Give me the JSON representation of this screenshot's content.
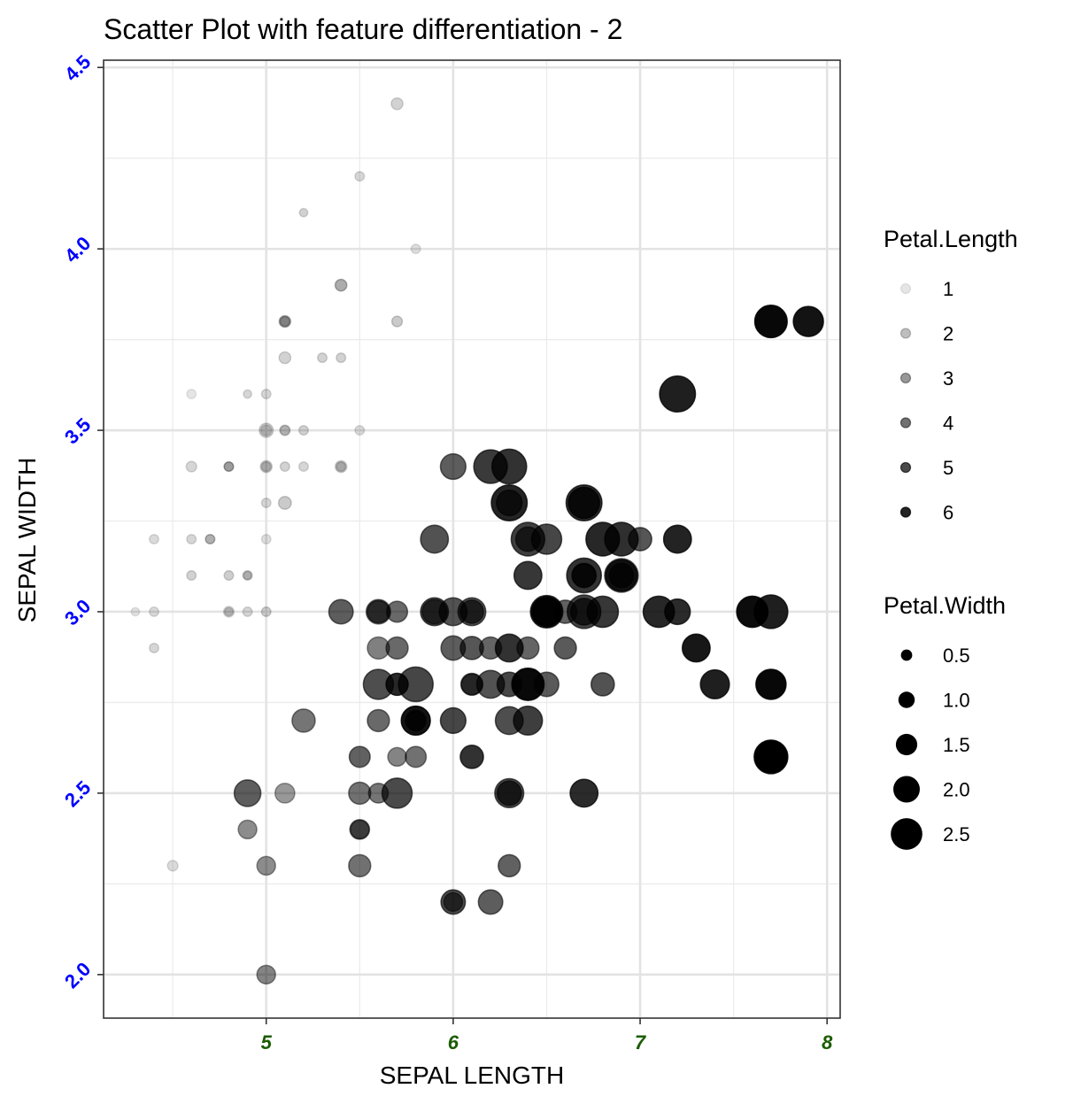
{
  "chart_data": {
    "type": "scatter",
    "title": "Scatter Plot with feature differentiation - 2",
    "xlabel": "SEPAL LENGTH",
    "ylabel": "SEPAL WIDTH",
    "xlim": [
      4.13,
      8.07
    ],
    "ylim": [
      1.88,
      4.52
    ],
    "xticks": [
      5,
      6,
      7,
      8
    ],
    "yticks": [
      2.0,
      2.5,
      3.0,
      3.5,
      4.0,
      4.5
    ],
    "xtick_labels": [
      "5",
      "6",
      "7",
      "8"
    ],
    "ytick_labels": [
      "2.0",
      "2.5",
      "3.0",
      "3.5",
      "4.0",
      "4.5"
    ],
    "xtick_color": "#1a5c00",
    "ytick_color": "#0000ff",
    "grid": true,
    "point_color": "#000000",
    "alpha_encodes": "Petal.Length",
    "size_encodes": "Petal.Width",
    "legend_position": "right",
    "legend_alpha": {
      "title": "Petal.Length",
      "labels": [
        "1",
        "2",
        "3",
        "4",
        "5",
        "6"
      ],
      "values": [
        1,
        2,
        3,
        4,
        5,
        6
      ]
    },
    "legend_size": {
      "title": "Petal.Width",
      "labels": [
        "0.5",
        "1.0",
        "1.5",
        "2.0",
        "2.5"
      ],
      "values": [
        0.5,
        1.0,
        1.5,
        2.0,
        2.5
      ]
    },
    "points": [
      [
        5.1,
        3.5,
        1.4,
        0.2
      ],
      [
        4.9,
        3.0,
        1.4,
        0.2
      ],
      [
        4.7,
        3.2,
        1.3,
        0.2
      ],
      [
        4.6,
        3.1,
        1.5,
        0.2
      ],
      [
        5.0,
        3.6,
        1.4,
        0.2
      ],
      [
        5.4,
        3.9,
        1.7,
        0.4
      ],
      [
        4.6,
        3.4,
        1.4,
        0.3
      ],
      [
        5.0,
        3.4,
        1.5,
        0.2
      ],
      [
        4.4,
        2.9,
        1.4,
        0.2
      ],
      [
        4.9,
        3.1,
        1.5,
        0.1
      ],
      [
        5.4,
        3.7,
        1.5,
        0.2
      ],
      [
        4.8,
        3.4,
        1.6,
        0.2
      ],
      [
        4.8,
        3.0,
        1.4,
        0.1
      ],
      [
        4.3,
        3.0,
        1.1,
        0.1
      ],
      [
        5.8,
        4.0,
        1.2,
        0.2
      ],
      [
        5.7,
        4.4,
        1.5,
        0.4
      ],
      [
        5.4,
        3.9,
        1.3,
        0.4
      ],
      [
        5.1,
        3.5,
        1.4,
        0.3
      ],
      [
        5.7,
        3.8,
        1.7,
        0.3
      ],
      [
        5.1,
        3.8,
        1.5,
        0.3
      ],
      [
        5.4,
        3.4,
        1.7,
        0.2
      ],
      [
        5.1,
        3.7,
        1.5,
        0.4
      ],
      [
        4.6,
        3.6,
        1.0,
        0.2
      ],
      [
        5.1,
        3.3,
        1.7,
        0.5
      ],
      [
        4.8,
        3.4,
        1.9,
        0.2
      ],
      [
        5.0,
        3.0,
        1.6,
        0.2
      ],
      [
        5.0,
        3.4,
        1.6,
        0.4
      ],
      [
        5.2,
        3.5,
        1.5,
        0.2
      ],
      [
        5.2,
        3.4,
        1.4,
        0.2
      ],
      [
        4.7,
        3.2,
        1.6,
        0.2
      ],
      [
        4.8,
        3.1,
        1.6,
        0.2
      ],
      [
        5.4,
        3.4,
        1.5,
        0.4
      ],
      [
        5.2,
        4.1,
        1.5,
        0.1
      ],
      [
        5.5,
        4.2,
        1.4,
        0.2
      ],
      [
        4.9,
        3.1,
        1.5,
        0.2
      ],
      [
        5.0,
        3.2,
        1.2,
        0.2
      ],
      [
        5.5,
        3.5,
        1.3,
        0.2
      ],
      [
        4.9,
        3.6,
        1.4,
        0.1
      ],
      [
        4.4,
        3.0,
        1.3,
        0.2
      ],
      [
        5.1,
        3.4,
        1.5,
        0.2
      ],
      [
        5.0,
        3.5,
        1.3,
        0.3
      ],
      [
        4.5,
        2.3,
        1.3,
        0.3
      ],
      [
        4.4,
        3.2,
        1.3,
        0.2
      ],
      [
        5.0,
        3.5,
        1.6,
        0.6
      ],
      [
        5.1,
        3.8,
        1.9,
        0.4
      ],
      [
        4.8,
        3.0,
        1.4,
        0.3
      ],
      [
        5.1,
        3.8,
        1.6,
        0.2
      ],
      [
        4.6,
        3.2,
        1.4,
        0.2
      ],
      [
        5.3,
        3.7,
        1.5,
        0.2
      ],
      [
        5.0,
        3.3,
        1.4,
        0.2
      ],
      [
        7.0,
        3.2,
        4.7,
        1.4
      ],
      [
        6.4,
        3.2,
        4.5,
        1.5
      ],
      [
        6.9,
        3.1,
        4.9,
        1.5
      ],
      [
        5.5,
        2.3,
        4.0,
        1.3
      ],
      [
        6.5,
        2.8,
        4.6,
        1.5
      ],
      [
        5.7,
        2.8,
        4.5,
        1.3
      ],
      [
        6.3,
        3.3,
        4.7,
        1.6
      ],
      [
        4.9,
        2.4,
        3.3,
        1.0
      ],
      [
        6.6,
        2.9,
        4.6,
        1.3
      ],
      [
        5.2,
        2.7,
        3.9,
        1.4
      ],
      [
        5.0,
        2.0,
        3.5,
        1.0
      ],
      [
        5.9,
        3.0,
        4.2,
        1.5
      ],
      [
        6.0,
        2.2,
        4.0,
        1.0
      ],
      [
        6.1,
        2.9,
        4.7,
        1.4
      ],
      [
        5.6,
        2.9,
        3.6,
        1.3
      ],
      [
        6.7,
        3.1,
        4.4,
        1.4
      ],
      [
        5.6,
        3.0,
        4.5,
        1.5
      ],
      [
        5.8,
        2.7,
        4.1,
        1.0
      ],
      [
        6.2,
        2.2,
        4.5,
        1.5
      ],
      [
        5.6,
        2.5,
        3.9,
        1.1
      ],
      [
        5.9,
        3.2,
        4.8,
        1.8
      ],
      [
        6.1,
        2.8,
        4.0,
        1.3
      ],
      [
        6.3,
        2.5,
        4.9,
        1.5
      ],
      [
        6.1,
        2.8,
        4.7,
        1.2
      ],
      [
        6.4,
        2.9,
        4.3,
        1.3
      ],
      [
        6.6,
        3.0,
        4.4,
        1.4
      ],
      [
        6.8,
        2.8,
        4.8,
        1.4
      ],
      [
        6.7,
        3.0,
        5.0,
        1.7
      ],
      [
        6.0,
        2.9,
        4.5,
        1.5
      ],
      [
        5.7,
        2.6,
        3.5,
        1.0
      ],
      [
        5.5,
        2.4,
        3.8,
        1.1
      ],
      [
        5.5,
        2.4,
        3.7,
        1.0
      ],
      [
        5.8,
        2.7,
        3.9,
        1.2
      ],
      [
        6.0,
        2.7,
        5.1,
        1.6
      ],
      [
        5.4,
        3.0,
        4.5,
        1.5
      ],
      [
        6.0,
        3.4,
        4.5,
        1.6
      ],
      [
        6.7,
        3.1,
        4.7,
        1.5
      ],
      [
        6.3,
        2.3,
        4.4,
        1.3
      ],
      [
        5.6,
        3.0,
        4.1,
        1.3
      ],
      [
        5.5,
        2.5,
        4.0,
        1.3
      ],
      [
        5.5,
        2.6,
        4.4,
        1.2
      ],
      [
        6.1,
        3.0,
        4.6,
        1.4
      ],
      [
        5.8,
        2.6,
        4.0,
        1.2
      ],
      [
        5.0,
        2.3,
        3.3,
        1.0
      ],
      [
        5.6,
        2.7,
        4.2,
        1.3
      ],
      [
        5.7,
        3.0,
        4.2,
        1.2
      ],
      [
        5.7,
        2.9,
        4.2,
        1.3
      ],
      [
        6.2,
        2.9,
        4.3,
        1.3
      ],
      [
        5.1,
        2.5,
        3.0,
        1.1
      ],
      [
        5.7,
        2.8,
        4.1,
        1.3
      ],
      [
        6.3,
        3.3,
        6.0,
        2.5
      ],
      [
        5.8,
        2.7,
        5.1,
        1.9
      ],
      [
        7.1,
        3.0,
        5.9,
        2.1
      ],
      [
        6.3,
        2.9,
        5.6,
        1.8
      ],
      [
        6.5,
        3.0,
        5.8,
        2.2
      ],
      [
        7.6,
        3.0,
        6.6,
        2.1
      ],
      [
        4.9,
        2.5,
        4.5,
        1.7
      ],
      [
        7.3,
        2.9,
        6.3,
        1.8
      ],
      [
        6.7,
        2.5,
        5.8,
        1.8
      ],
      [
        7.2,
        3.6,
        6.1,
        2.5
      ],
      [
        6.5,
        3.2,
        5.1,
        2.0
      ],
      [
        6.4,
        2.7,
        5.3,
        1.9
      ],
      [
        6.8,
        3.0,
        5.5,
        2.1
      ],
      [
        5.7,
        2.5,
        5.0,
        2.0
      ],
      [
        5.8,
        2.8,
        5.1,
        2.4
      ],
      [
        6.4,
        3.2,
        5.3,
        2.3
      ],
      [
        6.5,
        3.0,
        5.5,
        1.8
      ],
      [
        7.7,
        3.8,
        6.7,
        2.2
      ],
      [
        7.7,
        2.6,
        6.9,
        2.3
      ],
      [
        6.0,
        2.2,
        5.0,
        1.5
      ],
      [
        6.9,
        3.2,
        5.7,
        2.3
      ],
      [
        5.6,
        2.8,
        4.9,
        2.0
      ],
      [
        7.7,
        2.8,
        6.7,
        2.0
      ],
      [
        6.3,
        2.7,
        4.9,
        1.8
      ],
      [
        6.7,
        3.3,
        5.7,
        2.1
      ],
      [
        7.2,
        3.2,
        6.0,
        1.8
      ],
      [
        6.2,
        2.8,
        4.8,
        1.8
      ],
      [
        6.1,
        3.0,
        4.9,
        1.8
      ],
      [
        6.4,
        2.8,
        5.6,
        2.1
      ],
      [
        7.2,
        3.0,
        5.8,
        1.6
      ],
      [
        7.4,
        2.8,
        6.1,
        1.9
      ],
      [
        7.9,
        3.8,
        6.4,
        2.0
      ],
      [
        6.4,
        2.8,
        5.6,
        2.2
      ],
      [
        6.3,
        2.8,
        5.1,
        1.5
      ],
      [
        6.1,
        2.6,
        5.6,
        1.4
      ],
      [
        7.7,
        3.0,
        6.1,
        2.3
      ],
      [
        6.3,
        3.4,
        5.6,
        2.4
      ],
      [
        6.4,
        3.1,
        5.5,
        1.8
      ],
      [
        6.0,
        3.0,
        4.8,
        1.8
      ],
      [
        6.9,
        3.1,
        5.4,
        2.1
      ],
      [
        6.7,
        3.1,
        5.6,
        2.4
      ],
      [
        6.9,
        3.1,
        5.1,
        2.3
      ],
      [
        5.8,
        2.7,
        5.1,
        1.9
      ],
      [
        6.8,
        3.2,
        5.9,
        2.3
      ],
      [
        6.7,
        3.3,
        5.7,
        2.5
      ],
      [
        6.7,
        3.0,
        5.2,
        2.3
      ],
      [
        6.3,
        2.5,
        5.0,
        1.9
      ],
      [
        6.5,
        3.0,
        5.2,
        2.0
      ],
      [
        6.2,
        3.4,
        5.4,
        2.3
      ],
      [
        5.9,
        3.0,
        5.1,
        1.8
      ]
    ]
  }
}
